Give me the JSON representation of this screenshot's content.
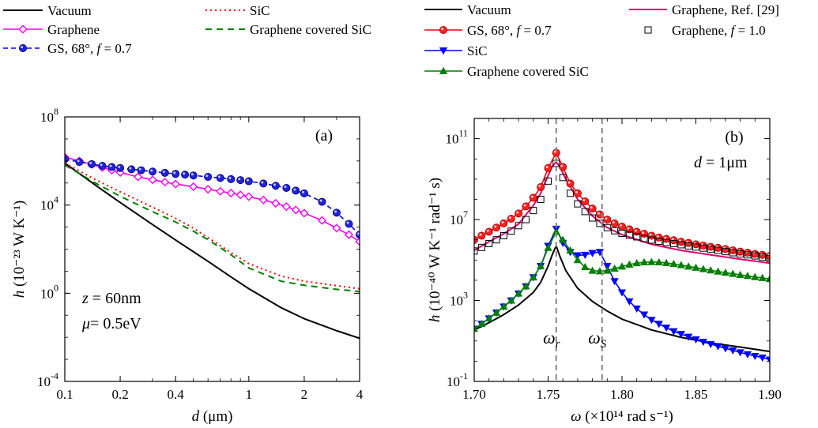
{
  "chart_data": [
    {
      "type": "line",
      "panel_label": "(a)",
      "xlabel_var": "d",
      "xlabel_unit": "(μm)",
      "ylabel_var": "h",
      "ylabel_rest": "(10⁻²³ W K⁻¹)",
      "xscale": "log",
      "yscale": "log",
      "xlim": [
        0.1,
        4
      ],
      "ylim": [
        0.0001,
        100000000
      ],
      "xticks": [
        0.1,
        0.2,
        0.4,
        1,
        2,
        4
      ],
      "xtick_labels": [
        "0.1",
        "0.2",
        "0.4",
        "1",
        "2",
        "4"
      ],
      "yticks": [
        0.0001,
        1,
        10000,
        100000000
      ],
      "ytick_labels": [
        {
          "base": "10",
          "exp": "-4"
        },
        {
          "base": "10",
          "exp": "0"
        },
        {
          "base": "10",
          "exp": "4"
        },
        {
          "base": "10",
          "exp": "8"
        }
      ],
      "annotations": [
        {
          "var": "z",
          "text": " = 60nm"
        },
        {
          "var": "μ",
          "text": "= 0.5eV"
        }
      ],
      "legend_columns": [
        [
          "Vacuum",
          "Graphene",
          "GS, 68°, f = 0.7"
        ],
        [
          "SiC",
          "Graphene covered SiC"
        ]
      ],
      "series": [
        {
          "name": "Vacuum",
          "color": "#000000",
          "dash": "",
          "marker": "none",
          "x": [
            0.1,
            0.15,
            0.2,
            0.3,
            0.4,
            0.6,
            0.8,
            1,
            1.5,
            2,
            3,
            4
          ],
          "y": [
            800000,
            70000,
            13000,
            1300,
            260,
            28,
            5.5,
            1.6,
            0.22,
            0.07,
            0.02,
            0.009
          ]
        },
        {
          "name": "Graphene",
          "color": "#ff00ff",
          "dash": "",
          "marker": "diamond",
          "x": [
            0.1,
            0.12,
            0.14,
            0.16,
            0.18,
            0.2,
            0.25,
            0.3,
            0.35,
            0.4,
            0.5,
            0.6,
            0.7,
            0.8,
            0.9,
            1,
            1.2,
            1.4,
            1.6,
            1.8,
            2,
            2.5,
            3,
            3.5,
            4
          ],
          "y": [
            1500000,
            1000000,
            700000,
            500000,
            380000,
            300000,
            190000,
            140000,
            110000,
            90000,
            68000,
            52000,
            42000,
            35000,
            29000,
            24000,
            17000,
            12000,
            8500,
            6000,
            4300,
            2000,
            900,
            450,
            220
          ]
        },
        {
          "name": "GS, 68°, f = 0.7",
          "color": "#0000ff",
          "dash": "6 4",
          "marker": "circle",
          "x": [
            0.1,
            0.12,
            0.14,
            0.16,
            0.18,
            0.2,
            0.23,
            0.26,
            0.3,
            0.35,
            0.4,
            0.45,
            0.5,
            0.6,
            0.7,
            0.8,
            0.9,
            1,
            1.2,
            1.4,
            1.6,
            1.8,
            2,
            2.5,
            3,
            3.5,
            4
          ],
          "y": [
            1200000,
            900000,
            720000,
            600000,
            530000,
            480000,
            420000,
            380000,
            330000,
            290000,
            260000,
            240000,
            220000,
            190000,
            170000,
            150000,
            135000,
            120000,
            95000,
            75000,
            60000,
            45000,
            34000,
            14000,
            4500,
            1400,
            450
          ]
        },
        {
          "name": "SiC",
          "color": "#ff0000",
          "dash": "2 4",
          "marker": "none",
          "x": [
            0.1,
            0.15,
            0.2,
            0.3,
            0.4,
            0.5,
            0.6,
            0.8,
            1,
            1.5,
            2,
            3,
            4
          ],
          "y": [
            800000,
            130000,
            40000,
            8000,
            2500,
            900,
            330,
            70,
            22,
            6,
            3.5,
            2.2,
            1.6
          ]
        },
        {
          "name": "Graphene covered SiC",
          "color": "#007f00",
          "dash": "8 6",
          "marker": "none",
          "x": [
            0.1,
            0.15,
            0.2,
            0.3,
            0.4,
            0.5,
            0.6,
            0.8,
            1,
            1.5,
            2,
            3,
            4
          ],
          "y": [
            650000,
            90000,
            25000,
            5000,
            1700,
            650,
            270,
            55,
            14,
            3.5,
            2.3,
            1.5,
            1.2
          ]
        }
      ]
    },
    {
      "type": "line",
      "panel_label": "(b)",
      "xlabel_var": "ω",
      "xlabel_rest": "(×10¹⁴ rad s⁻¹)",
      "ylabel_var": "h",
      "ylabel_rest": "(10⁻⁴⁰ W K⁻¹ rad⁻¹ s)",
      "xscale": "linear",
      "yscale": "log",
      "xlim": [
        1.7,
        1.9
      ],
      "ylim": [
        0.1,
        1000000000000
      ],
      "xticks": [
        1.7,
        1.75,
        1.8,
        1.85,
        1.9
      ],
      "xtick_labels": [
        "1.70",
        "1.75",
        "1.80",
        "1.85",
        "1.90"
      ],
      "yticks": [
        0.1,
        1000,
        10000000,
        100000000000
      ],
      "ytick_labels": [
        {
          "base": "10",
          "exp": "-1"
        },
        {
          "base": "10",
          "exp": "3"
        },
        {
          "base": "10",
          "exp": "7"
        },
        {
          "base": "10",
          "exp": "11"
        }
      ],
      "annotations": [
        {
          "var": "d",
          "text": " = 1μm"
        }
      ],
      "vlines": [
        {
          "x": 1.7555,
          "label_var": "ω",
          "label_sub": "r"
        },
        {
          "x": 1.7865,
          "label_var": "ω",
          "label_sub": "S"
        }
      ],
      "legend_columns": [
        [
          "Vacuum",
          "GS, 68°, f = 0.7",
          "SiC",
          "Graphene covered SiC"
        ],
        [
          "Graphene, Ref. [29]",
          "Graphene, f = 1.0"
        ]
      ],
      "series": [
        {
          "name": "Vacuum",
          "color": "#000000",
          "dash": "",
          "marker": "none",
          "x": [
            1.7,
            1.71,
            1.72,
            1.73,
            1.74,
            1.745,
            1.75,
            1.753,
            1.7555,
            1.758,
            1.762,
            1.77,
            1.78,
            1.79,
            1.8,
            1.82,
            1.84,
            1.86,
            1.88,
            1.9
          ],
          "y": [
            35,
            80,
            200,
            600,
            2500,
            8000,
            50000,
            200000,
            500000,
            150000,
            30000,
            4000,
            900,
            300,
            120,
            35,
            15,
            8,
            5,
            3
          ]
        },
        {
          "name": "Graphene, Ref. [29]",
          "color": "#e0006e",
          "dash": "",
          "marker": "none",
          "x": [
            1.7,
            1.71,
            1.72,
            1.73,
            1.74,
            1.745,
            1.75,
            1.753,
            1.7555,
            1.758,
            1.762,
            1.77,
            1.78,
            1.79,
            1.8,
            1.82,
            1.84,
            1.86,
            1.88,
            1.9
          ],
          "y": [
            300000,
            800000,
            2000000,
            6000000,
            50000000,
            200000000,
            1500000000,
            4500000000,
            7000000000,
            4000000000,
            1000000000,
            100000000,
            15000000,
            4000000,
            1800000,
            600000,
            300000,
            180000,
            110000,
            70000
          ]
        },
        {
          "name": "GS, 68°, f = 0.7",
          "color": "#ff0000",
          "dash": "",
          "marker": "sphere",
          "x": [
            1.7,
            1.705,
            1.71,
            1.715,
            1.72,
            1.725,
            1.73,
            1.735,
            1.74,
            1.745,
            1.75,
            1.7555,
            1.76,
            1.765,
            1.77,
            1.775,
            1.78,
            1.785,
            1.79,
            1.795,
            1.8,
            1.805,
            1.81,
            1.815,
            1.82,
            1.825,
            1.83,
            1.835,
            1.84,
            1.845,
            1.85,
            1.855,
            1.86,
            1.865,
            1.87,
            1.875,
            1.88,
            1.885,
            1.89,
            1.895,
            1.9
          ],
          "y": [
            1000000,
            1600000,
            2500000,
            4000000,
            6500000,
            11000000,
            20000000,
            45000000,
            120000000,
            400000000,
            3500000000,
            20000000000,
            4000000000,
            600000000,
            200000000,
            80000000,
            35000000,
            18000000,
            10000000,
            6500000,
            4500000,
            3300000,
            2500000,
            2000000,
            1600000,
            1300000,
            1100000,
            950000,
            800000,
            700000,
            600000,
            520000,
            450000,
            400000,
            350000,
            300000,
            260000,
            230000,
            200000,
            180000,
            160000
          ]
        },
        {
          "name": "Graphene, f = 1.0",
          "color": "#000000",
          "dash": "",
          "marker": "square-open",
          "x": [
            1.7,
            1.705,
            1.71,
            1.715,
            1.72,
            1.725,
            1.73,
            1.735,
            1.74,
            1.745,
            1.75,
            1.7555,
            1.76,
            1.765,
            1.77,
            1.775,
            1.78,
            1.785,
            1.79,
            1.795,
            1.8,
            1.805,
            1.81,
            1.815,
            1.82,
            1.825,
            1.83,
            1.835,
            1.84,
            1.845,
            1.85,
            1.855,
            1.86,
            1.865,
            1.87,
            1.875,
            1.88,
            1.885,
            1.89,
            1.895,
            1.9
          ],
          "y": [
            280000,
            420000,
            650000,
            1000000,
            1600000,
            2700000,
            5000000,
            10000000,
            28000000,
            100000000,
            800000000,
            6000000000,
            1200000000,
            200000000,
            60000000,
            25000000,
            12000000,
            6500000,
            4000000,
            2800000,
            2100000,
            1700000,
            1400000,
            1150000,
            980000,
            850000,
            740000,
            650000,
            570000,
            500000,
            440000,
            390000,
            340000,
            300000,
            260000,
            230000,
            200000,
            180000,
            160000,
            140000,
            120000
          ]
        },
        {
          "name": "SiC",
          "color": "#0000ff",
          "dash": "",
          "marker": "triangle-down",
          "x": [
            1.7,
            1.705,
            1.71,
            1.715,
            1.72,
            1.725,
            1.73,
            1.735,
            1.74,
            1.745,
            1.75,
            1.7555,
            1.76,
            1.765,
            1.77,
            1.775,
            1.78,
            1.785,
            1.79,
            1.795,
            1.8,
            1.805,
            1.81,
            1.815,
            1.82,
            1.825,
            1.83,
            1.835,
            1.84,
            1.845,
            1.85,
            1.855,
            1.86,
            1.865,
            1.87,
            1.875,
            1.88,
            1.885,
            1.89,
            1.895,
            1.9
          ],
          "y": [
            40,
            70,
            130,
            250,
            500,
            1000,
            2200,
            5000,
            14000,
            50000,
            500000,
            3500000,
            700000,
            250000,
            170000,
            180000,
            220000,
            250000,
            50000,
            9000,
            2500,
            900,
            400,
            200,
            110,
            70,
            45,
            30,
            22,
            16,
            12,
            9,
            7,
            5.5,
            4.3,
            3.4,
            2.7,
            2.2,
            1.8,
            1.5,
            1.2
          ]
        },
        {
          "name": "Graphene covered SiC",
          "color": "#007f00",
          "dash": "",
          "marker": "triangle-up",
          "x": [
            1.7,
            1.705,
            1.71,
            1.715,
            1.72,
            1.725,
            1.73,
            1.735,
            1.74,
            1.745,
            1.75,
            1.7555,
            1.76,
            1.765,
            1.77,
            1.775,
            1.78,
            1.785,
            1.79,
            1.795,
            1.8,
            1.805,
            1.81,
            1.815,
            1.82,
            1.825,
            1.83,
            1.835,
            1.84,
            1.845,
            1.85,
            1.855,
            1.86,
            1.865,
            1.87,
            1.875,
            1.88,
            1.885,
            1.89,
            1.895,
            1.9
          ],
          "y": [
            40,
            70,
            130,
            250,
            500,
            1000,
            2200,
            5000,
            14000,
            50000,
            400000,
            2500000,
            1000000,
            300000,
            100000,
            45000,
            30000,
            28000,
            30000,
            38000,
            48000,
            60000,
            70000,
            78000,
            80000,
            78000,
            72000,
            64000,
            56000,
            48000,
            42000,
            36000,
            31000,
            27000,
            24000,
            21000,
            18500,
            16500,
            14500,
            13000,
            11500
          ]
        }
      ]
    }
  ]
}
